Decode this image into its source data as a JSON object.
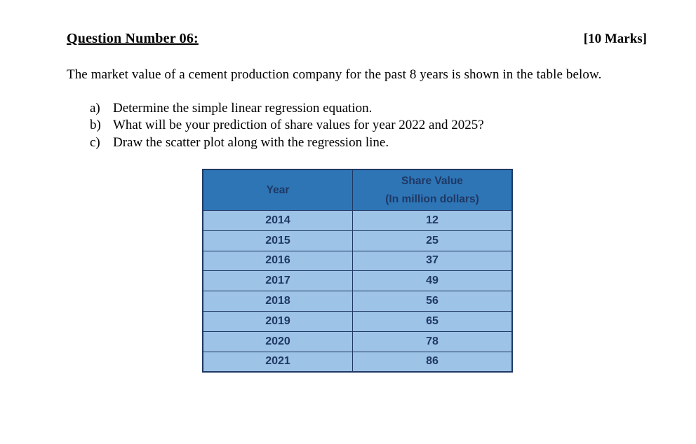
{
  "colors": {
    "page_bg": "#ffffff",
    "table_header_bg": "#2E75B6",
    "table_row_bg": "#9DC3E6",
    "table_border": "#1F3864",
    "table_text": "#1F3864",
    "body_text": "#000000"
  },
  "header": {
    "title": "Question Number 06:",
    "marks": "[10 Marks]"
  },
  "intro": "The market value of a cement production company for the past 8 years is shown in the table below.",
  "questions": [
    {
      "marker": "a)",
      "text": "Determine the simple linear regression equation."
    },
    {
      "marker": "b)",
      "text": "What will be your prediction of share values for year 2022 and 2025?"
    },
    {
      "marker": "c)",
      "text": "Draw the scatter plot along with the regression line."
    }
  ],
  "table": {
    "col1_header": "Year",
    "col2_header_line1": "Share Value",
    "col2_header_line2": "(In million dollars)",
    "rows": [
      {
        "year": "2014",
        "value": "12"
      },
      {
        "year": "2015",
        "value": "25"
      },
      {
        "year": "2016",
        "value": "37"
      },
      {
        "year": "2017",
        "value": "49"
      },
      {
        "year": "2018",
        "value": "56"
      },
      {
        "year": "2019",
        "value": "65"
      },
      {
        "year": "2020",
        "value": "78"
      },
      {
        "year": "2021",
        "value": "86"
      }
    ]
  }
}
